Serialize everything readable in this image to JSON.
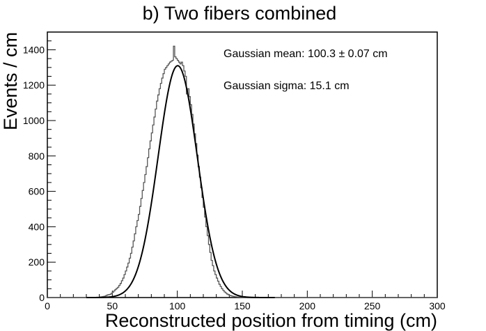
{
  "chart_data": {
    "type": "histogram",
    "title": "b) Two fibers combined",
    "xlabel": "Reconstructed position from timing (cm)",
    "ylabel": "Events / cm",
    "xlim": [
      0,
      300
    ],
    "ylim": [
      0,
      1500
    ],
    "x_ticks": [
      0,
      50,
      100,
      150,
      200,
      250,
      300
    ],
    "y_ticks": [
      0,
      200,
      400,
      600,
      800,
      1000,
      1200,
      1400
    ],
    "x_minor_step": 10,
    "y_minor_step": 50,
    "bin_width_cm": 1,
    "histogram": {
      "x": [
        40,
        42,
        44,
        46,
        48,
        50,
        52,
        54,
        56,
        58,
        60,
        62,
        64,
        66,
        68,
        70,
        72,
        74,
        76,
        78,
        80,
        82,
        84,
        86,
        88,
        90,
        92,
        94,
        96,
        97,
        98,
        99,
        100,
        101,
        102,
        103,
        104,
        106,
        107,
        108,
        110,
        112,
        114,
        116,
        118,
        120,
        122,
        124,
        126,
        128,
        130,
        132,
        134,
        136,
        138,
        140,
        142,
        144,
        146,
        148,
        150,
        152,
        154,
        156,
        158,
        160
      ],
      "y": [
        3,
        5,
        8,
        15,
        18,
        30,
        45,
        58,
        80,
        110,
        150,
        195,
        250,
        320,
        400,
        470,
        560,
        650,
        740,
        840,
        930,
        1020,
        1110,
        1180,
        1240,
        1290,
        1310,
        1330,
        1340,
        1420,
        1360,
        1350,
        1340,
        1330,
        1320,
        1330,
        1310,
        1250,
        1150,
        1180,
        1090,
        980,
        870,
        740,
        620,
        510,
        400,
        300,
        210,
        150,
        110,
        75,
        50,
        32,
        20,
        12,
        8,
        5,
        3,
        2,
        1,
        1,
        0,
        0,
        0,
        0
      ]
    },
    "fit": {
      "name": "Gaussian",
      "mean_cm": 100.3,
      "sigma_cm": 15.1,
      "amplitude": 1310
    },
    "annotations": {
      "mean_text": "Gaussian mean: 100.3 ± 0.07 cm",
      "sigma_text": "Gaussian sigma: 15.1 cm"
    },
    "colors": {
      "histogram": "#555555",
      "fit": "#000000",
      "frame": "#000000"
    }
  }
}
